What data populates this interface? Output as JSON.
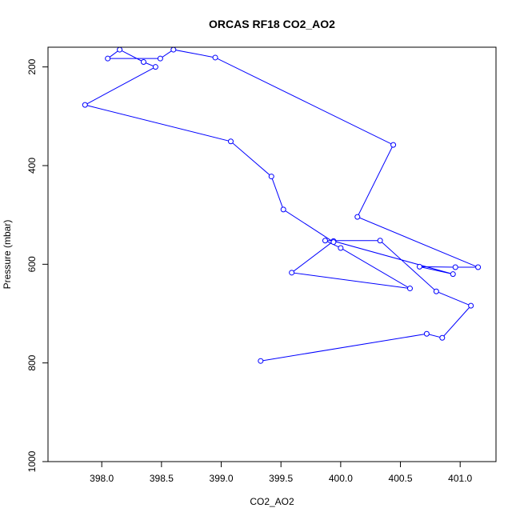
{
  "chart_data": {
    "type": "line",
    "title": "ORCAS RF18 CO2_AO2",
    "xlabel": "CO2_AO2",
    "ylabel": "Pressure (mbar)",
    "xlim": [
      397.55,
      401.3
    ],
    "ylim": [
      1000,
      160
    ],
    "y_reversed": true,
    "xticks": [
      398.0,
      398.5,
      399.0,
      399.5,
      400.0,
      400.5,
      401.0
    ],
    "xtick_labels": [
      "398.0",
      "398.5",
      "399.0",
      "399.5",
      "400.0",
      "400.5",
      "401.0"
    ],
    "yticks": [
      200,
      400,
      600,
      800,
      1000
    ],
    "ytick_labels": [
      "200",
      "400",
      "600",
      "800",
      "1000"
    ],
    "grid": false,
    "line_color": "#0000ff",
    "marker": "open-circle",
    "series": [
      {
        "x": [
          399.33,
          400.72,
          400.85,
          401.09,
          400.8,
          400.33,
          399.87,
          400.0,
          400.58,
          399.59,
          399.94,
          400.94,
          400.66,
          400.96,
          401.15,
          400.14,
          400.44,
          398.95,
          398.6,
          398.49,
          398.05,
          398.15,
          398.35,
          398.45,
          397.86,
          399.08,
          399.42,
          399.52,
          399.94
        ],
        "y": [
          796,
          741,
          749,
          684,
          655,
          552,
          552,
          567,
          649,
          617,
          553,
          620,
          605,
          606,
          606,
          504,
          358,
          181,
          165,
          183,
          183,
          165,
          190,
          200,
          277,
          351,
          422,
          489,
          555
        ]
      }
    ]
  }
}
